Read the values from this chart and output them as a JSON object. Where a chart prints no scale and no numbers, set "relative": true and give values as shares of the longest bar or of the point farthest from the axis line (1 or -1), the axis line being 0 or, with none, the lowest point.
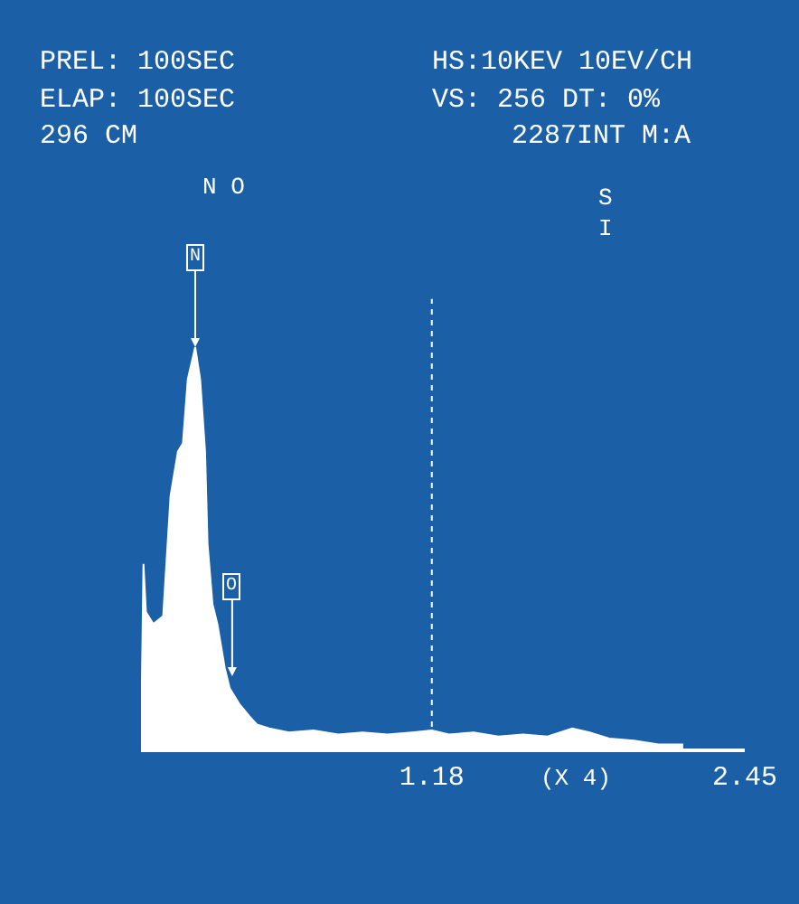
{
  "chart_data": {
    "type": "area",
    "relative": true,
    "color": "#ffffff",
    "grid": false,
    "legend": false,
    "x": [
      0.0,
      0.01,
      0.02,
      0.05,
      0.09,
      0.12,
      0.15,
      0.17,
      0.19,
      0.22,
      0.24,
      0.26,
      0.27,
      0.29,
      0.31,
      0.34,
      0.36,
      0.4,
      0.44,
      0.47,
      0.52,
      0.6,
      0.7,
      0.8,
      0.9,
      1.0,
      1.1,
      1.18,
      1.25,
      1.35,
      1.45,
      1.55,
      1.65,
      1.75,
      1.82,
      1.9,
      2.0,
      2.1,
      2.2
    ],
    "values": [
      0,
      0.46,
      0.34,
      0.31,
      0.33,
      0.63,
      0.74,
      0.76,
      0.92,
      1.0,
      0.92,
      0.74,
      0.51,
      0.36,
      0.31,
      0.2,
      0.15,
      0.11,
      0.08,
      0.06,
      0.05,
      0.04,
      0.045,
      0.035,
      0.04,
      0.035,
      0.04,
      0.045,
      0.035,
      0.04,
      0.03,
      0.035,
      0.03,
      0.05,
      0.04,
      0.025,
      0.02,
      0.01,
      0.01
    ],
    "xlim": [
      0,
      2.45
    ],
    "xticks": [
      1.18,
      2.45
    ],
    "ref_lines": [
      {
        "axis": "x",
        "value": 1.18,
        "color": "#ffffff",
        "line_style": "dotted"
      }
    ],
    "annotations": [
      "PREL: 100SEC",
      "ELAP: 100SEC",
      "296 CM",
      "HS:10KEV 10EV/CH",
      "VS: 256 DT: 0%",
      "2287INT M:A",
      "N O",
      "S I",
      "(X 4)",
      {
        "text": "N",
        "x": 0.22,
        "y": 1.0
      },
      {
        "text": "O",
        "x": 0.37,
        "y": 0.18
      }
    ]
  }
}
